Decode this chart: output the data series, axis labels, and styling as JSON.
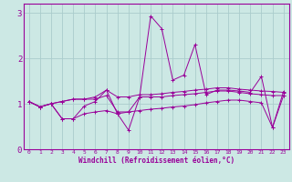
{
  "background_color": "#cce8e4",
  "grid_color": "#aacccc",
  "line_color": "#990099",
  "xlabel": "Windchill (Refroidissement éolien,°C)",
  "xlim": [
    -0.5,
    23.5
  ],
  "ylim": [
    0,
    3.2
  ],
  "xticks": [
    0,
    1,
    2,
    3,
    4,
    5,
    6,
    7,
    8,
    9,
    10,
    11,
    12,
    13,
    14,
    15,
    16,
    17,
    18,
    19,
    20,
    21,
    22,
    23
  ],
  "yticks": [
    0,
    1,
    2,
    3
  ],
  "line1_x": [
    0,
    1,
    2,
    3,
    4,
    5,
    6,
    7,
    8,
    9,
    10,
    11,
    12,
    13,
    14,
    15,
    16,
    17,
    18,
    19,
    20,
    21,
    22,
    23
  ],
  "line1_y": [
    1.05,
    0.93,
    1.0,
    1.05,
    1.1,
    1.1,
    1.15,
    1.3,
    1.15,
    1.15,
    1.2,
    1.2,
    1.22,
    1.25,
    1.27,
    1.3,
    1.32,
    1.35,
    1.35,
    1.32,
    1.3,
    1.28,
    1.27,
    1.25
  ],
  "line2_x": [
    0,
    1,
    2,
    3,
    4,
    5,
    6,
    7,
    8,
    9,
    10,
    11,
    12,
    13,
    14,
    15,
    16,
    17,
    18,
    19,
    20,
    21,
    22,
    23
  ],
  "line2_y": [
    1.05,
    0.93,
    1.0,
    0.67,
    0.67,
    0.95,
    1.05,
    1.3,
    0.78,
    0.42,
    1.15,
    2.93,
    2.65,
    1.52,
    1.63,
    2.3,
    1.2,
    1.3,
    1.3,
    1.28,
    1.25,
    1.6,
    0.48,
    1.27
  ],
  "line3_x": [
    0,
    1,
    2,
    3,
    4,
    5,
    6,
    7,
    8,
    9,
    10,
    11,
    12,
    13,
    14,
    15,
    16,
    17,
    18,
    19,
    20,
    21,
    22,
    23
  ],
  "line3_y": [
    1.05,
    0.93,
    1.0,
    1.05,
    1.1,
    1.1,
    1.1,
    1.18,
    0.82,
    0.82,
    1.15,
    1.15,
    1.15,
    1.18,
    1.2,
    1.22,
    1.25,
    1.28,
    1.28,
    1.25,
    1.22,
    1.2,
    1.18,
    1.18
  ],
  "line4_x": [
    0,
    1,
    2,
    3,
    4,
    5,
    6,
    7,
    8,
    9,
    10,
    11,
    12,
    13,
    14,
    15,
    16,
    17,
    18,
    19,
    20,
    21,
    22,
    23
  ],
  "line4_y": [
    1.05,
    0.93,
    1.0,
    0.67,
    0.67,
    0.78,
    0.82,
    0.85,
    0.78,
    0.82,
    0.85,
    0.88,
    0.9,
    0.93,
    0.95,
    0.98,
    1.02,
    1.05,
    1.08,
    1.08,
    1.05,
    1.02,
    0.48,
    1.18
  ]
}
